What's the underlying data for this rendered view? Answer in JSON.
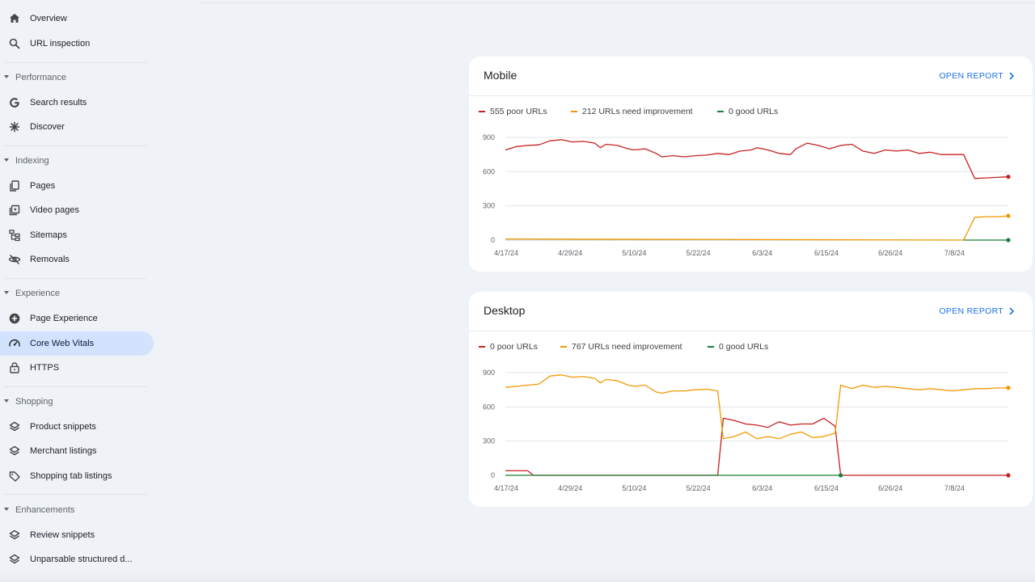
{
  "sidebar": {
    "items": [
      {
        "label": "Overview",
        "icon": "home-icon"
      },
      {
        "label": "URL inspection",
        "icon": "search-icon"
      }
    ],
    "sections": [
      {
        "label": "Performance",
        "items": [
          {
            "label": "Search results",
            "icon": "google-g-icon"
          },
          {
            "label": "Discover",
            "icon": "asterisk-icon"
          }
        ]
      },
      {
        "label": "Indexing",
        "items": [
          {
            "label": "Pages",
            "icon": "pages-icon"
          },
          {
            "label": "Video pages",
            "icon": "video-page-icon"
          },
          {
            "label": "Sitemaps",
            "icon": "sitemap-icon"
          },
          {
            "label": "Removals",
            "icon": "eye-off-icon"
          }
        ]
      },
      {
        "label": "Experience",
        "items": [
          {
            "label": "Page Experience",
            "icon": "plus-circle-icon"
          },
          {
            "label": "Core Web Vitals",
            "icon": "speedometer-icon",
            "active": true
          },
          {
            "label": "HTTPS",
            "icon": "lock-icon"
          }
        ]
      },
      {
        "label": "Shopping",
        "items": [
          {
            "label": "Product snippets",
            "icon": "layers-icon"
          },
          {
            "label": "Merchant listings",
            "icon": "layers-icon"
          },
          {
            "label": "Shopping tab listings",
            "icon": "tag-icon"
          }
        ]
      },
      {
        "label": "Enhancements",
        "items": [
          {
            "label": "Review snippets",
            "icon": "layers-icon"
          },
          {
            "label": "Unparsable structured d...",
            "icon": "layers-icon"
          }
        ]
      }
    ]
  },
  "colors": {
    "poor": "#c5221f",
    "needs_improvement": "#f29900",
    "good": "#188038",
    "accent": "#1a73e8"
  },
  "mobile": {
    "title": "Mobile",
    "open_report": "OPEN REPORT",
    "legend": {
      "poor": "555 poor URLs",
      "needs_improvement": "212 URLs need improvement",
      "good": "0 good URLs"
    }
  },
  "desktop": {
    "title": "Desktop",
    "open_report": "OPEN REPORT",
    "legend": {
      "poor": "0 poor URLs",
      "needs_improvement": "767 URLs need improvement",
      "good": "0 good URLs"
    }
  },
  "chart_data": [
    {
      "type": "line",
      "title": "Mobile",
      "x_tick_labels": [
        "4/17/24",
        "4/29/24",
        "5/10/24",
        "5/22/24",
        "6/3/24",
        "6/15/24",
        "6/26/24",
        "7/8/24"
      ],
      "y_ticks": [
        0,
        300,
        600,
        900
      ],
      "ylim": [
        0,
        900
      ],
      "grid": true,
      "legend_position": "top-left",
      "x_start": "2024-04-17",
      "x_end": "2024-07-16",
      "series": [
        {
          "name": "555 poor URLs",
          "color": "#c5221f",
          "points": [
            [
              "2024-04-17",
              790
            ],
            [
              "2024-04-19",
              820
            ],
            [
              "2024-04-21",
              830
            ],
            [
              "2024-04-23",
              835
            ],
            [
              "2024-04-25",
              870
            ],
            [
              "2024-04-27",
              880
            ],
            [
              "2024-04-29",
              860
            ],
            [
              "2024-05-01",
              865
            ],
            [
              "2024-05-03",
              850
            ],
            [
              "2024-05-04",
              810
            ],
            [
              "2024-05-05",
              840
            ],
            [
              "2024-05-07",
              830
            ],
            [
              "2024-05-09",
              800
            ],
            [
              "2024-05-10",
              790
            ],
            [
              "2024-05-12",
              800
            ],
            [
              "2024-05-14",
              760
            ],
            [
              "2024-05-15",
              730
            ],
            [
              "2024-05-17",
              740
            ],
            [
              "2024-05-19",
              730
            ],
            [
              "2024-05-21",
              740
            ],
            [
              "2024-05-23",
              745
            ],
            [
              "2024-05-25",
              760
            ],
            [
              "2024-05-27",
              750
            ],
            [
              "2024-05-29",
              780
            ],
            [
              "2024-05-31",
              790
            ],
            [
              "2024-06-01",
              810
            ],
            [
              "2024-06-03",
              790
            ],
            [
              "2024-06-05",
              760
            ],
            [
              "2024-06-07",
              750
            ],
            [
              "2024-06-08",
              800
            ],
            [
              "2024-06-10",
              850
            ],
            [
              "2024-06-12",
              830
            ],
            [
              "2024-06-14",
              800
            ],
            [
              "2024-06-16",
              830
            ],
            [
              "2024-06-18",
              840
            ],
            [
              "2024-06-20",
              780
            ],
            [
              "2024-06-22",
              760
            ],
            [
              "2024-06-24",
              790
            ],
            [
              "2024-06-26",
              780
            ],
            [
              "2024-06-28",
              790
            ],
            [
              "2024-06-30",
              760
            ],
            [
              "2024-07-02",
              770
            ],
            [
              "2024-07-04",
              750
            ],
            [
              "2024-07-06",
              750
            ],
            [
              "2024-07-08",
              750
            ],
            [
              "2024-07-10",
              540
            ],
            [
              "2024-07-12",
              545
            ],
            [
              "2024-07-14",
              550
            ],
            [
              "2024-07-16",
              555
            ]
          ]
        },
        {
          "name": "212 URLs need improvement",
          "color": "#f29900",
          "points": [
            [
              "2024-04-17",
              10
            ],
            [
              "2024-07-08",
              0
            ],
            [
              "2024-07-10",
              200
            ],
            [
              "2024-07-12",
              205
            ],
            [
              "2024-07-14",
              205
            ],
            [
              "2024-07-16",
              212
            ]
          ]
        },
        {
          "name": "0 good URLs",
          "color": "#188038",
          "points": [
            [
              "2024-07-08",
              0
            ],
            [
              "2024-07-16",
              0
            ]
          ]
        }
      ]
    },
    {
      "type": "line",
      "title": "Desktop",
      "x_tick_labels": [
        "4/17/24",
        "4/29/24",
        "5/10/24",
        "5/22/24",
        "6/3/24",
        "6/15/24",
        "6/26/24",
        "7/8/24"
      ],
      "y_ticks": [
        0,
        300,
        600,
        900
      ],
      "ylim": [
        0,
        900
      ],
      "grid": true,
      "legend_position": "top-left",
      "x_start": "2024-04-17",
      "x_end": "2024-07-16",
      "series": [
        {
          "name": "0 poor URLs",
          "color": "#c5221f",
          "points": [
            [
              "2024-04-17",
              40
            ],
            [
              "2024-04-21",
              40
            ],
            [
              "2024-04-22",
              0
            ],
            [
              "2024-05-25",
              0
            ],
            [
              "2024-05-26",
              500
            ],
            [
              "2024-05-28",
              480
            ],
            [
              "2024-05-30",
              450
            ],
            [
              "2024-06-01",
              440
            ],
            [
              "2024-06-03",
              420
            ],
            [
              "2024-06-05",
              470
            ],
            [
              "2024-06-07",
              440
            ],
            [
              "2024-06-09",
              450
            ],
            [
              "2024-06-11",
              450
            ],
            [
              "2024-06-13",
              500
            ],
            [
              "2024-06-15",
              430
            ],
            [
              "2024-06-16",
              0
            ],
            [
              "2024-07-16",
              0
            ]
          ]
        },
        {
          "name": "767 URLs need improvement",
          "color": "#f29900",
          "points": [
            [
              "2024-04-17",
              770
            ],
            [
              "2024-04-19",
              780
            ],
            [
              "2024-04-21",
              790
            ],
            [
              "2024-04-23",
              800
            ],
            [
              "2024-04-25",
              870
            ],
            [
              "2024-04-27",
              880
            ],
            [
              "2024-04-29",
              860
            ],
            [
              "2024-05-01",
              865
            ],
            [
              "2024-05-03",
              850
            ],
            [
              "2024-05-04",
              810
            ],
            [
              "2024-05-05",
              840
            ],
            [
              "2024-05-07",
              830
            ],
            [
              "2024-05-09",
              790
            ],
            [
              "2024-05-10",
              780
            ],
            [
              "2024-05-12",
              790
            ],
            [
              "2024-05-14",
              730
            ],
            [
              "2024-05-15",
              720
            ],
            [
              "2024-05-17",
              740
            ],
            [
              "2024-05-19",
              740
            ],
            [
              "2024-05-21",
              750
            ],
            [
              "2024-05-23",
              755
            ],
            [
              "2024-05-25",
              740
            ],
            [
              "2024-05-26",
              320
            ],
            [
              "2024-05-28",
              340
            ],
            [
              "2024-05-30",
              380
            ],
            [
              "2024-06-01",
              320
            ],
            [
              "2024-06-03",
              340
            ],
            [
              "2024-06-05",
              320
            ],
            [
              "2024-06-07",
              360
            ],
            [
              "2024-06-09",
              380
            ],
            [
              "2024-06-11",
              330
            ],
            [
              "2024-06-13",
              340
            ],
            [
              "2024-06-15",
              370
            ],
            [
              "2024-06-16",
              790
            ],
            [
              "2024-06-18",
              760
            ],
            [
              "2024-06-20",
              790
            ],
            [
              "2024-06-22",
              770
            ],
            [
              "2024-06-24",
              780
            ],
            [
              "2024-06-26",
              770
            ],
            [
              "2024-06-28",
              760
            ],
            [
              "2024-06-30",
              750
            ],
            [
              "2024-07-02",
              760
            ],
            [
              "2024-07-04",
              750
            ],
            [
              "2024-07-06",
              740
            ],
            [
              "2024-07-08",
              750
            ],
            [
              "2024-07-10",
              760
            ],
            [
              "2024-07-12",
              760
            ],
            [
              "2024-07-14",
              765
            ],
            [
              "2024-07-16",
              767
            ]
          ]
        },
        {
          "name": "0 good URLs",
          "color": "#188038",
          "points": [
            [
              "2024-04-17",
              0
            ],
            [
              "2024-06-16",
              0
            ]
          ]
        }
      ]
    }
  ]
}
